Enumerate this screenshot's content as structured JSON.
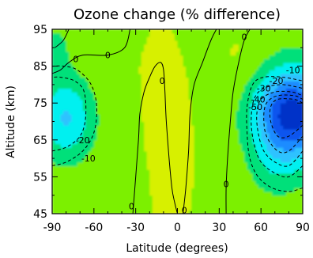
{
  "chart_data": {
    "type": "heatmap",
    "subtype": "filled-contour",
    "title": "Ozone change (% difference)",
    "xlabel": "Latitude (degrees)",
    "ylabel": "Altitude (km)",
    "xlim": [
      -90,
      90
    ],
    "ylim": [
      45,
      95
    ],
    "x_ticks": [
      -90,
      -60,
      -30,
      0,
      30,
      60,
      90
    ],
    "y_ticks": [
      45,
      55,
      65,
      75,
      85,
      95
    ],
    "grid": false,
    "legend": "none",
    "fill_levels": [
      {
        "min": -60,
        "max": -50,
        "color": "#0033c8"
      },
      {
        "min": -50,
        "max": -40,
        "color": "#0a55ee"
      },
      {
        "min": -40,
        "max": -30,
        "color": "#1f8cff"
      },
      {
        "min": -30,
        "max": -20,
        "color": "#2ec2ff"
      },
      {
        "min": -20,
        "max": -10,
        "color": "#00f0f0"
      },
      {
        "min": -10,
        "max": 0,
        "color": "#00e07a"
      },
      {
        "min": 0,
        "max": 10,
        "color": "#7cf000"
      },
      {
        "min": 10,
        "max": 20,
        "color": "#d7f000"
      }
    ],
    "contours": [
      {
        "level": 0,
        "label": "0",
        "dashed": false,
        "points": [
          [
            -78,
            95
          ],
          [
            -82,
            92
          ],
          [
            -88,
            90
          ]
        ]
      },
      {
        "level": 0,
        "label": "0",
        "dashed": false,
        "points": [
          [
            -90,
            83
          ],
          [
            -84,
            84
          ],
          [
            -78,
            86
          ],
          [
            -68,
            88
          ],
          [
            -50,
            88
          ],
          [
            -38,
            90
          ],
          [
            -34,
            95
          ]
        ]
      },
      {
        "level": 0,
        "label": "0",
        "dashed": false,
        "points": [
          [
            -32,
            45
          ],
          [
            -30,
            55
          ],
          [
            -28,
            65
          ],
          [
            -27,
            72
          ],
          [
            -24,
            78
          ],
          [
            -20,
            82
          ],
          [
            -16,
            85
          ],
          [
            -12,
            86
          ],
          [
            -10,
            84
          ],
          [
            -9,
            78
          ],
          [
            -8,
            70
          ],
          [
            -6,
            60
          ],
          [
            -4,
            52
          ],
          [
            -2,
            48
          ],
          [
            0,
            45
          ]
        ]
      },
      {
        "level": 0,
        "label": "0",
        "dashed": false,
        "points": [
          [
            4,
            45
          ],
          [
            6,
            52
          ],
          [
            8,
            62
          ],
          [
            9,
            72
          ],
          [
            12,
            80
          ],
          [
            18,
            86
          ],
          [
            24,
            92
          ],
          [
            28,
            95
          ]
        ]
      },
      {
        "level": 0,
        "label": "0",
        "dashed": false,
        "points": [
          [
            35,
            45
          ],
          [
            35,
            52
          ],
          [
            36,
            60
          ],
          [
            38,
            70
          ],
          [
            40,
            78
          ],
          [
            44,
            86
          ],
          [
            48,
            92
          ],
          [
            52,
            95
          ]
        ]
      },
      {
        "level": -10,
        "label": "-10",
        "dashed": true,
        "points": [
          [
            -90,
            58
          ],
          [
            -80,
            59
          ],
          [
            -68,
            62
          ],
          [
            -60,
            67
          ],
          [
            -58,
            74
          ],
          [
            -62,
            80
          ],
          [
            -72,
            84
          ],
          [
            -82,
            85
          ],
          [
            -90,
            85
          ]
        ]
      },
      {
        "level": -20,
        "label": "-20",
        "dashed": true,
        "points": [
          [
            -90,
            62
          ],
          [
            -80,
            63
          ],
          [
            -70,
            66
          ],
          [
            -66,
            71
          ],
          [
            -67,
            78
          ],
          [
            -74,
            81
          ],
          [
            -84,
            82
          ],
          [
            -90,
            82
          ]
        ]
      },
      {
        "level": -10,
        "label": "-10",
        "dashed": true,
        "points": [
          [
            90,
            52
          ],
          [
            80,
            51
          ],
          [
            68,
            52
          ],
          [
            58,
            55
          ],
          [
            52,
            60
          ],
          [
            50,
            67
          ],
          [
            50,
            74
          ],
          [
            54,
            80
          ],
          [
            62,
            82
          ],
          [
            76,
            82
          ],
          [
            90,
            81
          ]
        ]
      },
      {
        "level": -20,
        "label": "-20",
        "dashed": true,
        "points": [
          [
            90,
            58
          ],
          [
            80,
            55
          ],
          [
            70,
            56
          ],
          [
            60,
            59
          ],
          [
            55,
            64
          ],
          [
            53,
            70
          ],
          [
            55,
            76
          ],
          [
            62,
            79
          ],
          [
            75,
            80
          ],
          [
            90,
            79
          ]
        ]
      },
      {
        "level": -30,
        "label": "-30",
        "dashed": true,
        "points": [
          [
            90,
            62
          ],
          [
            80,
            58
          ],
          [
            70,
            59
          ],
          [
            62,
            62
          ],
          [
            58,
            67
          ],
          [
            57,
            72
          ],
          [
            60,
            76
          ],
          [
            70,
            78
          ],
          [
            82,
            78
          ],
          [
            90,
            77
          ]
        ]
      },
      {
        "level": -40,
        "label": "-40",
        "dashed": true,
        "points": [
          [
            90,
            66
          ],
          [
            80,
            62
          ],
          [
            72,
            62
          ],
          [
            64,
            66
          ],
          [
            62,
            71
          ],
          [
            64,
            75
          ],
          [
            72,
            77
          ],
          [
            84,
            77
          ],
          [
            90,
            76
          ]
        ]
      },
      {
        "level": -50,
        "label": "-50",
        "dashed": true,
        "points": [
          [
            90,
            69
          ],
          [
            80,
            66
          ],
          [
            72,
            66
          ],
          [
            67,
            70
          ],
          [
            67,
            74
          ],
          [
            72,
            76
          ],
          [
            84,
            76
          ],
          [
            90,
            75
          ]
        ]
      }
    ],
    "contour_labels": [
      {
        "text": "0",
        "x": -73,
        "y": 87
      },
      {
        "text": "0",
        "x": -50,
        "y": 88
      },
      {
        "text": "0",
        "x": -11,
        "y": 81
      },
      {
        "text": "0",
        "x": -33,
        "y": 47
      },
      {
        "text": "0",
        "x": 5,
        "y": 46
      },
      {
        "text": "0",
        "x": 35,
        "y": 53
      },
      {
        "text": "0",
        "x": 48,
        "y": 93
      },
      {
        "text": "-20",
        "x": -68,
        "y": 65
      },
      {
        "text": "-10",
        "x": -64,
        "y": 60
      },
      {
        "text": "-10",
        "x": 83,
        "y": 84
      },
      {
        "text": "-20",
        "x": 71,
        "y": 81
      },
      {
        "text": "-30",
        "x": 62,
        "y": 79
      },
      {
        "text": "-40",
        "x": 58,
        "y": 76
      },
      {
        "text": "-50",
        "x": 56,
        "y": 74
      }
    ]
  }
}
